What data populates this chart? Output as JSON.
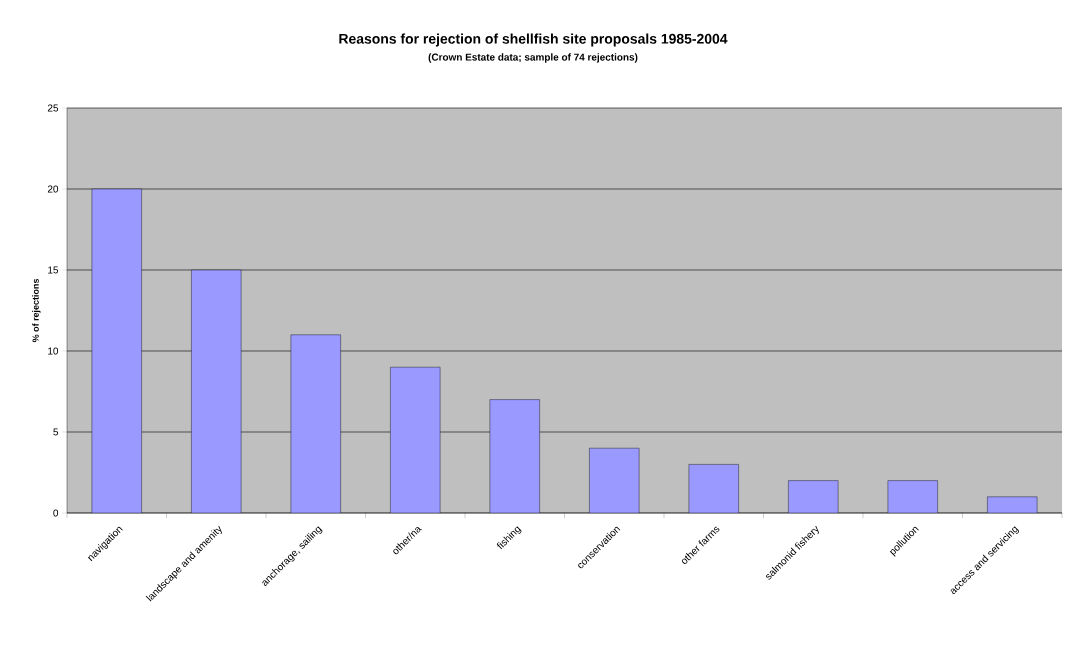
{
  "chart_data": {
    "type": "bar",
    "title": "Reasons for rejection of shellfish site proposals 1985-2004",
    "subtitle": "(Crown Estate data; sample of 74 rejections)",
    "ylabel": "% of rejections",
    "categories": [
      "navigation",
      "landscape and amenity",
      "anchorage, sailing",
      "other/na",
      "fishing",
      "conservation",
      "other farms",
      "salmonid fishery",
      "pollution",
      "access and servicing"
    ],
    "values": [
      20,
      15,
      11,
      9,
      7,
      4,
      3,
      2,
      2,
      1
    ],
    "color": "#9999ff",
    "ylim": [
      0,
      25
    ],
    "yticks": [
      0,
      5,
      10,
      15,
      20,
      25
    ],
    "grid": "y"
  }
}
